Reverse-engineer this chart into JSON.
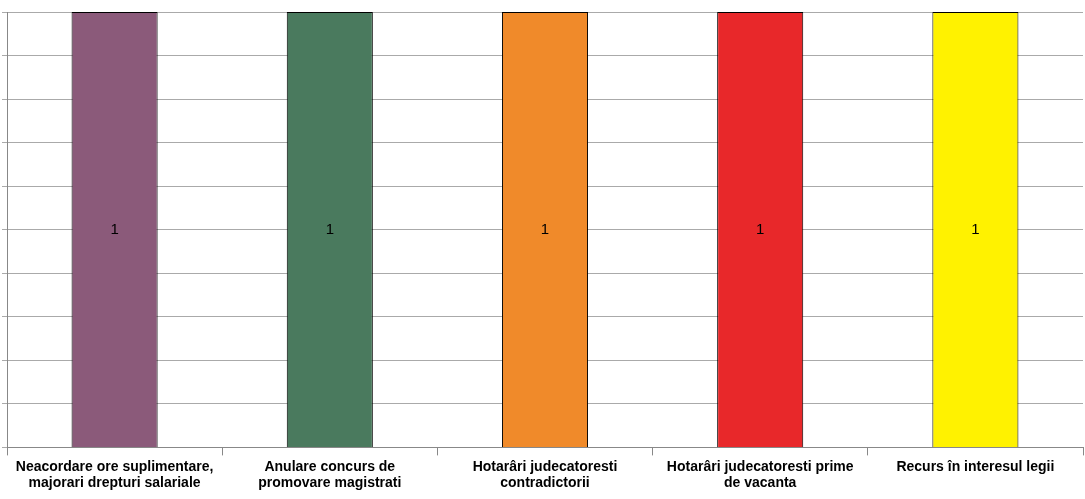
{
  "chart_data": {
    "type": "bar",
    "categories": [
      "Neacordare ore suplimentare,\nmajorari drepturi salariale",
      "Anulare concurs de\npromovare magistrati",
      "Hotarâri judecatoresti\ncontradictorii",
      "Hotarâri judecatoresti prime\nde vacanta",
      "Recurs în interesul legii"
    ],
    "values": [
      1,
      1,
      1,
      1,
      1
    ],
    "colors": [
      "#8b5a7a",
      "#4a7a5e",
      "#f08a2a",
      "#e8282a",
      "#fff200"
    ],
    "ylim": [
      0,
      1
    ],
    "yticks": [
      {
        "value": 0,
        "label": null
      },
      {
        "value": 0.1,
        "label": null
      },
      {
        "value": 0.2,
        "label": null
      },
      {
        "value": 0.3,
        "label": null
      },
      {
        "value": 0.4,
        "label": null
      },
      {
        "value": 0.5,
        "label": null
      },
      {
        "value": 0.6,
        "label": null
      },
      {
        "value": 0.7,
        "label": null
      },
      {
        "value": 0.8,
        "label": null
      },
      {
        "value": 0.9,
        "label": null
      },
      {
        "value": 1,
        "label": null
      }
    ],
    "grid": "y",
    "tick_labels": "x",
    "data_labels": true,
    "legend": false
  }
}
